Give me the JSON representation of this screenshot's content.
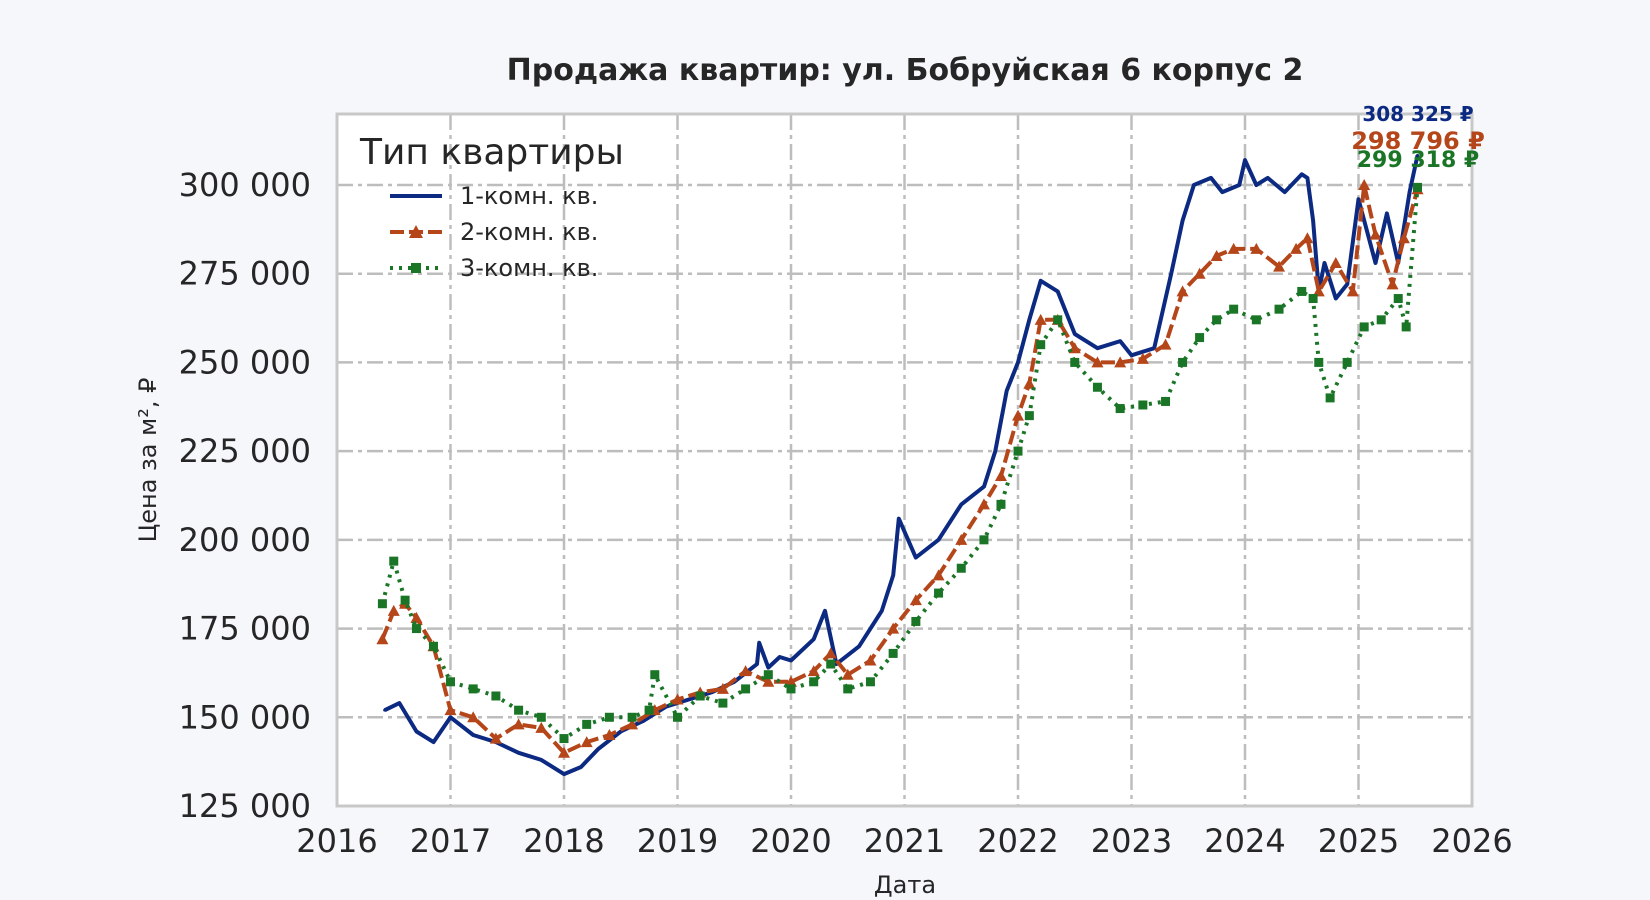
{
  "chart_data": {
    "type": "line",
    "title": "Продажа квартир: ул. Бобруйская 6 корпус 2",
    "xlabel": "Дата",
    "ylabel": "Цена за м², ₽",
    "xlim": [
      2016,
      2026
    ],
    "ylim": [
      125000,
      320000
    ],
    "x_ticks": [
      "2016",
      "2017",
      "2018",
      "2019",
      "2020",
      "2021",
      "2022",
      "2023",
      "2024",
      "2025",
      "2026"
    ],
    "y_ticks": [
      "125 000",
      "150 000",
      "175 000",
      "200 000",
      "225 000",
      "250 000",
      "275 000",
      "300 000"
    ],
    "grid": true,
    "legend": {
      "title": "Тип квартиры",
      "position": "top-left"
    },
    "series": [
      {
        "name": "1-комн. кв.",
        "color": "#0c2a82",
        "style": "solid",
        "last_label": "308 325 ₽",
        "x": [
          2016.42,
          2016.55,
          2016.7,
          2016.85,
          2017.0,
          2017.2,
          2017.4,
          2017.6,
          2017.8,
          2018.0,
          2018.15,
          2018.3,
          2018.5,
          2018.7,
          2018.9,
          2019.1,
          2019.3,
          2019.5,
          2019.7,
          2019.72,
          2019.8,
          2019.9,
          2020.0,
          2020.2,
          2020.3,
          2020.4,
          2020.6,
          2020.8,
          2020.9,
          2020.95,
          2021.1,
          2021.3,
          2021.5,
          2021.7,
          2021.8,
          2021.9,
          2022.0,
          2022.1,
          2022.2,
          2022.35,
          2022.5,
          2022.7,
          2022.9,
          2023.0,
          2023.2,
          2023.35,
          2023.45,
          2023.55,
          2023.7,
          2023.8,
          2023.95,
          2024.0,
          2024.1,
          2024.2,
          2024.35,
          2024.5,
          2024.55,
          2024.6,
          2024.65,
          2024.7,
          2024.8,
          2024.9,
          2025.0,
          2025.15,
          2025.25,
          2025.35,
          2025.45,
          2025.52
        ],
        "y": [
          152000,
          154000,
          146000,
          143000,
          150000,
          145000,
          143000,
          140000,
          138000,
          134000,
          136000,
          141000,
          146000,
          149000,
          153000,
          155000,
          157000,
          160000,
          165000,
          171000,
          164000,
          167000,
          166000,
          172000,
          180000,
          165000,
          170000,
          180000,
          190000,
          206000,
          195000,
          200000,
          210000,
          215000,
          225000,
          242000,
          250000,
          262000,
          273000,
          270000,
          258000,
          254000,
          256000,
          252000,
          254000,
          275000,
          290000,
          300000,
          302000,
          298000,
          300000,
          307000,
          300000,
          302000,
          298000,
          303000,
          302000,
          290000,
          270000,
          278000,
          268000,
          272000,
          296000,
          278000,
          292000,
          278000,
          298000,
          308325
        ]
      },
      {
        "name": "2-комн. кв.",
        "color": "#b5461a",
        "style": "dashed-triangle",
        "last_label": "298 796 ₽",
        "x": [
          2016.4,
          2016.5,
          2016.6,
          2016.7,
          2016.85,
          2017.0,
          2017.2,
          2017.4,
          2017.6,
          2017.8,
          2018.0,
          2018.2,
          2018.4,
          2018.6,
          2018.8,
          2019.0,
          2019.2,
          2019.4,
          2019.6,
          2019.8,
          2020.0,
          2020.2,
          2020.35,
          2020.5,
          2020.7,
          2020.9,
          2021.1,
          2021.3,
          2021.5,
          2021.7,
          2021.85,
          2022.0,
          2022.1,
          2022.2,
          2022.35,
          2022.5,
          2022.7,
          2022.9,
          2023.1,
          2023.3,
          2023.45,
          2023.6,
          2023.75,
          2023.9,
          2024.1,
          2024.3,
          2024.45,
          2024.55,
          2024.65,
          2024.8,
          2024.95,
          2025.05,
          2025.15,
          2025.3,
          2025.4,
          2025.52
        ],
        "y": [
          172000,
          180000,
          182000,
          178000,
          170000,
          152000,
          150000,
          144000,
          148000,
          147000,
          140000,
          143000,
          145000,
          148000,
          152000,
          155000,
          157000,
          158000,
          163000,
          160000,
          160000,
          163000,
          168000,
          162000,
          166000,
          175000,
          183000,
          190000,
          200000,
          210000,
          218000,
          235000,
          244000,
          262000,
          262000,
          254000,
          250000,
          250000,
          251000,
          255000,
          270000,
          275000,
          280000,
          282000,
          282000,
          277000,
          282000,
          285000,
          270000,
          278000,
          270000,
          300000,
          286000,
          272000,
          285000,
          298796
        ]
      },
      {
        "name": "3-комн. кв.",
        "color": "#1a7526",
        "style": "dotted-square",
        "last_label": "299 318 ₽",
        "x": [
          2016.4,
          2016.5,
          2016.6,
          2016.7,
          2016.85,
          2017.0,
          2017.2,
          2017.4,
          2017.6,
          2017.8,
          2018.0,
          2018.2,
          2018.4,
          2018.6,
          2018.75,
          2018.8,
          2019.0,
          2019.2,
          2019.4,
          2019.6,
          2019.8,
          2020.0,
          2020.2,
          2020.35,
          2020.5,
          2020.7,
          2020.9,
          2021.1,
          2021.3,
          2021.5,
          2021.7,
          2021.85,
          2022.0,
          2022.1,
          2022.2,
          2022.35,
          2022.5,
          2022.7,
          2022.9,
          2023.1,
          2023.3,
          2023.45,
          2023.6,
          2023.75,
          2023.9,
          2024.1,
          2024.3,
          2024.5,
          2024.6,
          2024.65,
          2024.75,
          2024.9,
          2025.05,
          2025.2,
          2025.35,
          2025.42,
          2025.52
        ],
        "y": [
          182000,
          194000,
          183000,
          175000,
          170000,
          160000,
          158000,
          156000,
          152000,
          150000,
          144000,
          148000,
          150000,
          150000,
          152000,
          162000,
          150000,
          156000,
          154000,
          158000,
          162000,
          158000,
          160000,
          165000,
          158000,
          160000,
          168000,
          177000,
          185000,
          192000,
          200000,
          210000,
          225000,
          235000,
          255000,
          262000,
          250000,
          243000,
          237000,
          238000,
          239000,
          250000,
          257000,
          262000,
          265000,
          262000,
          265000,
          270000,
          268000,
          250000,
          240000,
          250000,
          260000,
          262000,
          268000,
          260000,
          299318
        ]
      }
    ]
  }
}
